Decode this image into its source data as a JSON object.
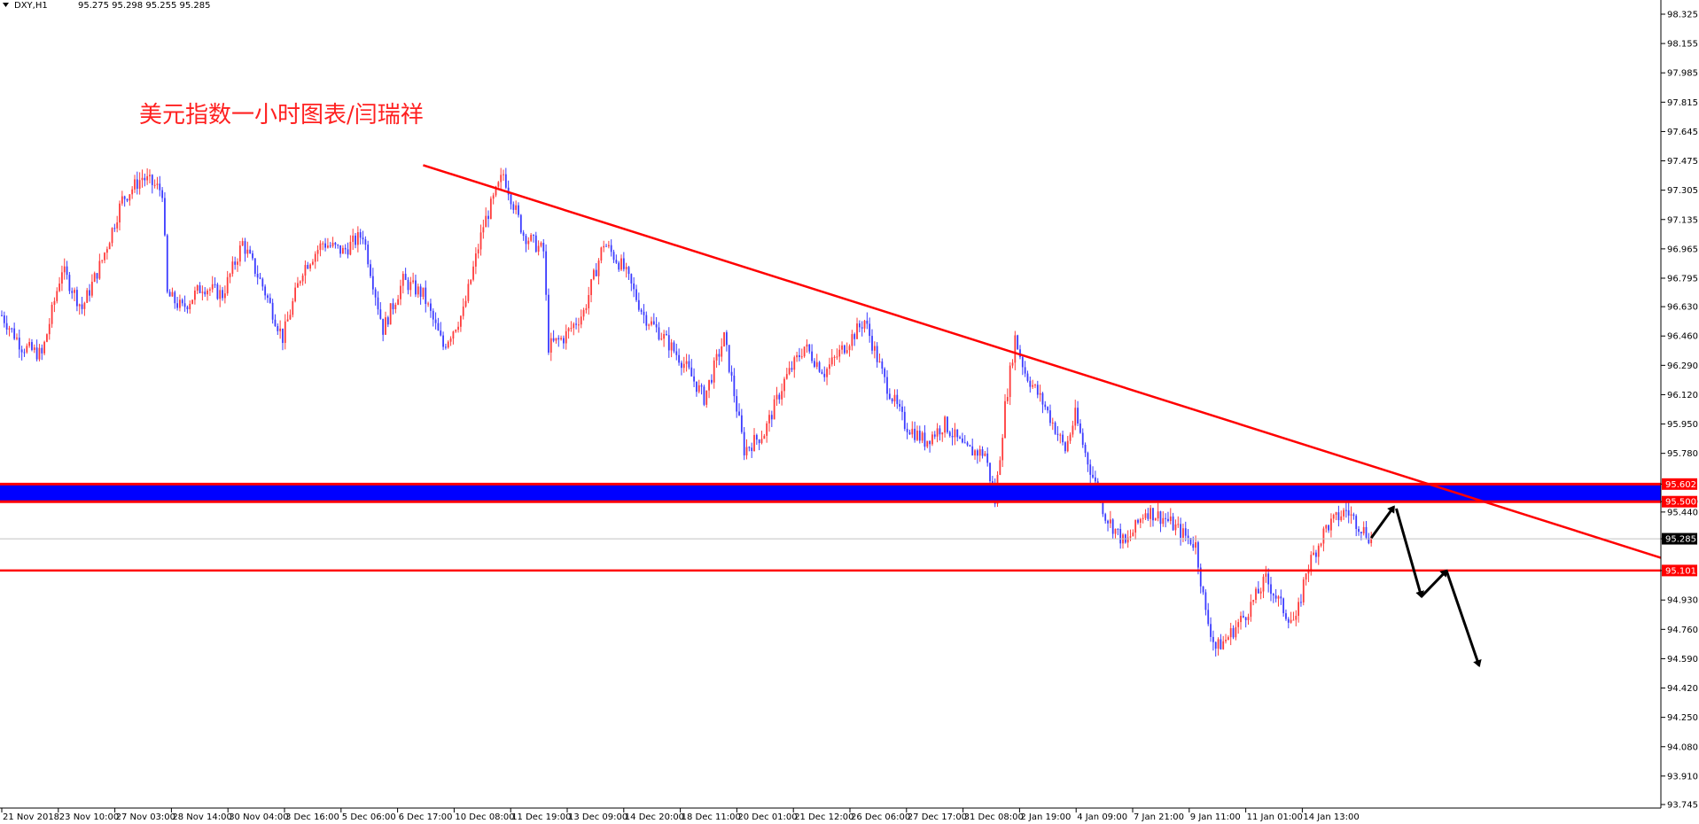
{
  "header": {
    "symbol": "DXY,H1",
    "ohlc": "95.275 95.298 95.255 95.285"
  },
  "annotation_title": "美元指数一小时图表/闫瑞祥",
  "colors": {
    "bull_candle": "#ff3b3b",
    "bear_candle": "#3b3bff",
    "trendline": "#ff0000",
    "zone_fill": "#0000ff",
    "zone_border": "#ff0000",
    "support_line": "#ff0000",
    "current_price_line": "#c0c0c0",
    "arrow": "#000000"
  },
  "chart_data": {
    "type": "candlestick",
    "instrument": "DXY",
    "timeframe": "H1",
    "ylim": [
      93.745,
      98.325
    ],
    "y_ticks": [
      "98.325",
      "98.155",
      "97.985",
      "97.815",
      "97.645",
      "97.475",
      "97.305",
      "97.135",
      "96.965",
      "96.795",
      "96.630",
      "96.460",
      "96.290",
      "96.120",
      "95.950",
      "95.780",
      "95.602",
      "95.500",
      "95.440",
      "95.285",
      "95.101",
      "94.930",
      "94.760",
      "94.590",
      "94.420",
      "94.250",
      "94.080",
      "93.910",
      "93.745"
    ],
    "x_ticks": [
      "21 Nov 2018",
      "23 Nov 10:00",
      "27 Nov 03:00",
      "28 Nov 14:00",
      "30 Nov 04:00",
      "3 Dec 16:00",
      "5 Dec 06:00",
      "6 Dec 17:00",
      "10 Dec 08:00",
      "11 Dec 19:00",
      "13 Dec 09:00",
      "14 Dec 20:00",
      "18 Dec 11:00",
      "20 Dec 01:00",
      "21 Dec 12:00",
      "26 Dec 06:00",
      "27 Dec 17:00",
      "31 Dec 08:00",
      "2 Jan 19:00",
      "4 Jan 09:00",
      "7 Jan 21:00",
      "9 Jan 11:00",
      "11 Jan 01:00",
      "14 Jan 13:00"
    ],
    "price_path_keypoints": [
      [
        0,
        96.58
      ],
      [
        8,
        96.4
      ],
      [
        16,
        96.35
      ],
      [
        24,
        96.85
      ],
      [
        32,
        96.62
      ],
      [
        40,
        96.9
      ],
      [
        48,
        97.25
      ],
      [
        56,
        97.38
      ],
      [
        64,
        97.3
      ],
      [
        66,
        96.7
      ],
      [
        72,
        96.62
      ],
      [
        80,
        96.75
      ],
      [
        88,
        96.7
      ],
      [
        96,
        97.0
      ],
      [
        104,
        96.75
      ],
      [
        112,
        96.45
      ],
      [
        120,
        96.85
      ],
      [
        128,
        97.0
      ],
      [
        136,
        96.95
      ],
      [
        144,
        97.05
      ],
      [
        152,
        96.5
      ],
      [
        160,
        96.78
      ],
      [
        168,
        96.7
      ],
      [
        176,
        96.4
      ],
      [
        184,
        96.6
      ],
      [
        192,
        97.1
      ],
      [
        200,
        97.4
      ],
      [
        208,
        97.05
      ],
      [
        216,
        96.95
      ],
      [
        218,
        96.4
      ],
      [
        224,
        96.45
      ],
      [
        232,
        96.6
      ],
      [
        240,
        97.0
      ],
      [
        248,
        96.85
      ],
      [
        256,
        96.58
      ],
      [
        264,
        96.45
      ],
      [
        272,
        96.3
      ],
      [
        280,
        96.1
      ],
      [
        288,
        96.45
      ],
      [
        296,
        95.8
      ],
      [
        304,
        95.9
      ],
      [
        312,
        96.2
      ],
      [
        320,
        96.4
      ],
      [
        328,
        96.25
      ],
      [
        336,
        96.4
      ],
      [
        344,
        96.55
      ],
      [
        352,
        96.2
      ],
      [
        360,
        95.95
      ],
      [
        368,
        95.85
      ],
      [
        376,
        95.95
      ],
      [
        384,
        95.8
      ],
      [
        392,
        95.78
      ],
      [
        396,
        95.5
      ],
      [
        400,
        96.05
      ],
      [
        404,
        96.45
      ],
      [
        408,
        96.25
      ],
      [
        416,
        96.05
      ],
      [
        424,
        95.8
      ],
      [
        428,
        96.0
      ],
      [
        432,
        95.78
      ],
      [
        436,
        95.6
      ],
      [
        440,
        95.42
      ],
      [
        448,
        95.25
      ],
      [
        452,
        95.35
      ],
      [
        456,
        95.45
      ],
      [
        464,
        95.4
      ],
      [
        472,
        95.3
      ],
      [
        476,
        95.25
      ],
      [
        480,
        94.85
      ],
      [
        484,
        94.65
      ],
      [
        488,
        94.7
      ],
      [
        496,
        94.85
      ],
      [
        504,
        95.05
      ],
      [
        512,
        94.85
      ],
      [
        516,
        94.8
      ],
      [
        520,
        95.1
      ],
      [
        528,
        95.35
      ],
      [
        536,
        95.45
      ],
      [
        542,
        95.35
      ],
      [
        546,
        95.285
      ]
    ],
    "levels": [
      {
        "label": "95.602",
        "value": 95.602,
        "kind": "resistance-zone-top"
      },
      {
        "label": "95.500",
        "value": 95.5,
        "kind": "resistance-zone-bottom"
      },
      {
        "label": "95.285",
        "value": 95.285,
        "kind": "current-price"
      },
      {
        "label": "95.101",
        "value": 95.101,
        "kind": "support"
      }
    ],
    "trendline": {
      "from": [
        168,
        97.45
      ],
      "to": [
        546,
        95.37
      ]
    },
    "projection_arrows": [
      {
        "from": [
          546,
          95.29
        ],
        "to": [
          555,
          95.47
        ]
      },
      {
        "from": [
          556,
          95.46
        ],
        "to": [
          566,
          94.95
        ]
      },
      {
        "from": [
          566,
          94.95
        ],
        "to": [
          576,
          95.1
        ]
      },
      {
        "from": [
          576,
          95.1
        ],
        "to": [
          589,
          94.55
        ]
      }
    ]
  }
}
